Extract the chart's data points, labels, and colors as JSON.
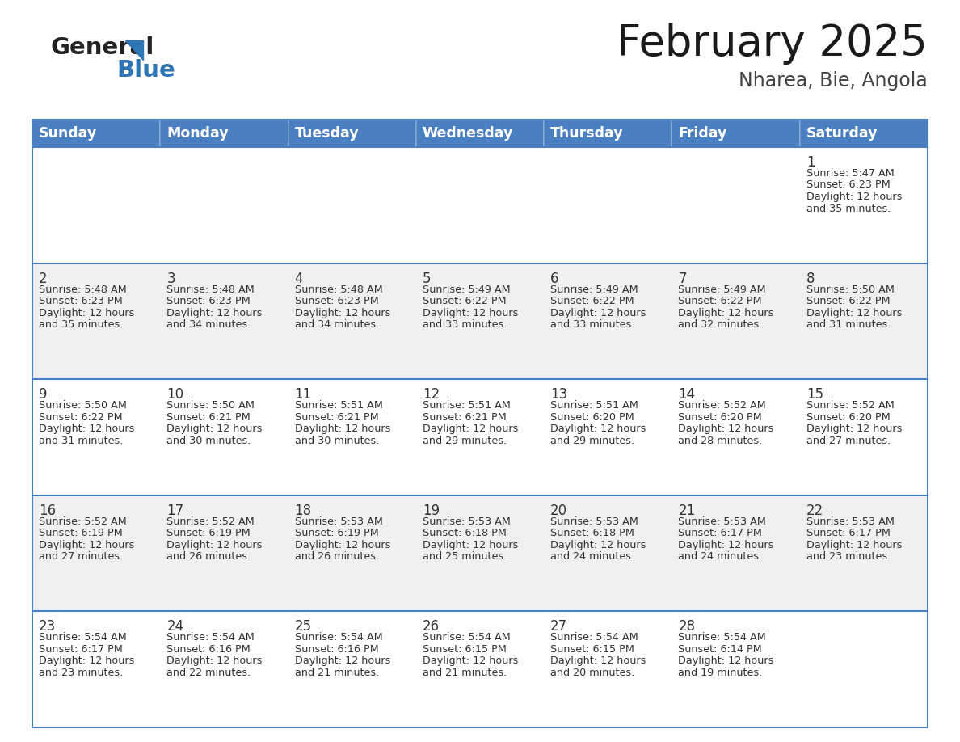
{
  "title": "February 2025",
  "subtitle": "Nharea, Bie, Angola",
  "header_color": "#4A7FC1",
  "header_text_color": "#FFFFFF",
  "row_colors": [
    "#FFFFFF",
    "#F0F0F0"
  ],
  "border_color": "#4A7FC1",
  "text_color": "#333333",
  "day_names": [
    "Sunday",
    "Monday",
    "Tuesday",
    "Wednesday",
    "Thursday",
    "Friday",
    "Saturday"
  ],
  "logo_color": "#2E75B6",
  "logo_dark": "#222222",
  "days": [
    {
      "day": 1,
      "col": 6,
      "row": 0,
      "sunrise": "5:47 AM",
      "sunset": "6:23 PM",
      "daylight_hours": 12,
      "daylight_minutes": 35
    },
    {
      "day": 2,
      "col": 0,
      "row": 1,
      "sunrise": "5:48 AM",
      "sunset": "6:23 PM",
      "daylight_hours": 12,
      "daylight_minutes": 35
    },
    {
      "day": 3,
      "col": 1,
      "row": 1,
      "sunrise": "5:48 AM",
      "sunset": "6:23 PM",
      "daylight_hours": 12,
      "daylight_minutes": 34
    },
    {
      "day": 4,
      "col": 2,
      "row": 1,
      "sunrise": "5:48 AM",
      "sunset": "6:23 PM",
      "daylight_hours": 12,
      "daylight_minutes": 34
    },
    {
      "day": 5,
      "col": 3,
      "row": 1,
      "sunrise": "5:49 AM",
      "sunset": "6:22 PM",
      "daylight_hours": 12,
      "daylight_minutes": 33
    },
    {
      "day": 6,
      "col": 4,
      "row": 1,
      "sunrise": "5:49 AM",
      "sunset": "6:22 PM",
      "daylight_hours": 12,
      "daylight_minutes": 33
    },
    {
      "day": 7,
      "col": 5,
      "row": 1,
      "sunrise": "5:49 AM",
      "sunset": "6:22 PM",
      "daylight_hours": 12,
      "daylight_minutes": 32
    },
    {
      "day": 8,
      "col": 6,
      "row": 1,
      "sunrise": "5:50 AM",
      "sunset": "6:22 PM",
      "daylight_hours": 12,
      "daylight_minutes": 31
    },
    {
      "day": 9,
      "col": 0,
      "row": 2,
      "sunrise": "5:50 AM",
      "sunset": "6:22 PM",
      "daylight_hours": 12,
      "daylight_minutes": 31
    },
    {
      "day": 10,
      "col": 1,
      "row": 2,
      "sunrise": "5:50 AM",
      "sunset": "6:21 PM",
      "daylight_hours": 12,
      "daylight_minutes": 30
    },
    {
      "day": 11,
      "col": 2,
      "row": 2,
      "sunrise": "5:51 AM",
      "sunset": "6:21 PM",
      "daylight_hours": 12,
      "daylight_minutes": 30
    },
    {
      "day": 12,
      "col": 3,
      "row": 2,
      "sunrise": "5:51 AM",
      "sunset": "6:21 PM",
      "daylight_hours": 12,
      "daylight_minutes": 29
    },
    {
      "day": 13,
      "col": 4,
      "row": 2,
      "sunrise": "5:51 AM",
      "sunset": "6:20 PM",
      "daylight_hours": 12,
      "daylight_minutes": 29
    },
    {
      "day": 14,
      "col": 5,
      "row": 2,
      "sunrise": "5:52 AM",
      "sunset": "6:20 PM",
      "daylight_hours": 12,
      "daylight_minutes": 28
    },
    {
      "day": 15,
      "col": 6,
      "row": 2,
      "sunrise": "5:52 AM",
      "sunset": "6:20 PM",
      "daylight_hours": 12,
      "daylight_minutes": 27
    },
    {
      "day": 16,
      "col": 0,
      "row": 3,
      "sunrise": "5:52 AM",
      "sunset": "6:19 PM",
      "daylight_hours": 12,
      "daylight_minutes": 27
    },
    {
      "day": 17,
      "col": 1,
      "row": 3,
      "sunrise": "5:52 AM",
      "sunset": "6:19 PM",
      "daylight_hours": 12,
      "daylight_minutes": 26
    },
    {
      "day": 18,
      "col": 2,
      "row": 3,
      "sunrise": "5:53 AM",
      "sunset": "6:19 PM",
      "daylight_hours": 12,
      "daylight_minutes": 26
    },
    {
      "day": 19,
      "col": 3,
      "row": 3,
      "sunrise": "5:53 AM",
      "sunset": "6:18 PM",
      "daylight_hours": 12,
      "daylight_minutes": 25
    },
    {
      "day": 20,
      "col": 4,
      "row": 3,
      "sunrise": "5:53 AM",
      "sunset": "6:18 PM",
      "daylight_hours": 12,
      "daylight_minutes": 24
    },
    {
      "day": 21,
      "col": 5,
      "row": 3,
      "sunrise": "5:53 AM",
      "sunset": "6:17 PM",
      "daylight_hours": 12,
      "daylight_minutes": 24
    },
    {
      "day": 22,
      "col": 6,
      "row": 3,
      "sunrise": "5:53 AM",
      "sunset": "6:17 PM",
      "daylight_hours": 12,
      "daylight_minutes": 23
    },
    {
      "day": 23,
      "col": 0,
      "row": 4,
      "sunrise": "5:54 AM",
      "sunset": "6:17 PM",
      "daylight_hours": 12,
      "daylight_minutes": 23
    },
    {
      "day": 24,
      "col": 1,
      "row": 4,
      "sunrise": "5:54 AM",
      "sunset": "6:16 PM",
      "daylight_hours": 12,
      "daylight_minutes": 22
    },
    {
      "day": 25,
      "col": 2,
      "row": 4,
      "sunrise": "5:54 AM",
      "sunset": "6:16 PM",
      "daylight_hours": 12,
      "daylight_minutes": 21
    },
    {
      "day": 26,
      "col": 3,
      "row": 4,
      "sunrise": "5:54 AM",
      "sunset": "6:15 PM",
      "daylight_hours": 12,
      "daylight_minutes": 21
    },
    {
      "day": 27,
      "col": 4,
      "row": 4,
      "sunrise": "5:54 AM",
      "sunset": "6:15 PM",
      "daylight_hours": 12,
      "daylight_minutes": 20
    },
    {
      "day": 28,
      "col": 5,
      "row": 4,
      "sunrise": "5:54 AM",
      "sunset": "6:14 PM",
      "daylight_hours": 12,
      "daylight_minutes": 19
    }
  ]
}
